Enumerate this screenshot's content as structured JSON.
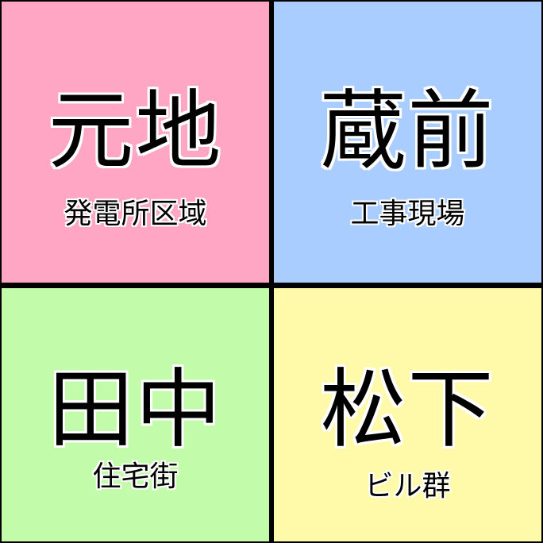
{
  "tiles": [
    {
      "name": "元地",
      "subtitle": "発電所区域",
      "color": "#ffa6c4"
    },
    {
      "name": "蔵前",
      "subtitle": "工事現場",
      "color": "#a9cdfe"
    },
    {
      "name": "田中",
      "subtitle": "住宅街",
      "color": "#c2fcaa"
    },
    {
      "name": "松下",
      "subtitle": "ビル群",
      "color": "#fffaaa"
    }
  ]
}
